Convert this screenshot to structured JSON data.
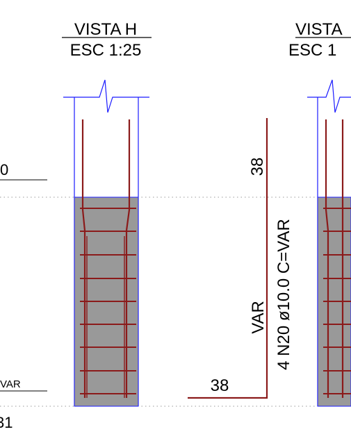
{
  "views": [
    {
      "title": "VISTA H",
      "scale": "ESC 1:25"
    },
    {
      "title": "VISTA",
      "scale": "ESC 1"
    }
  ],
  "left_partial": {
    "level_top": "0",
    "level_bottom": "VAR",
    "bottom_number": "31"
  },
  "bar_schedule": {
    "top_length": "38",
    "var_length": "VAR",
    "spec": "4 N20 ø10.0 C=VAR",
    "bottom_length": "38"
  },
  "colors": {
    "outline": "#1a1aff",
    "rebar": "#8b1a1a",
    "concrete": "#999999",
    "dotted": "#9a9a9a",
    "text": "#000000"
  }
}
